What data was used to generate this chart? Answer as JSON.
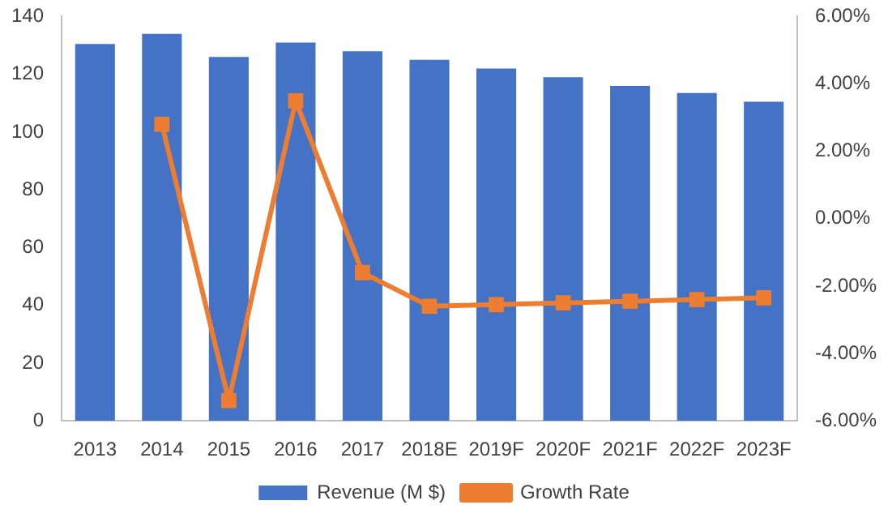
{
  "chart_data": {
    "type": "bar",
    "categories": [
      "2013",
      "2014",
      "2015",
      "2016",
      "2017",
      "2018E",
      "2019F",
      "2020F",
      "2021F",
      "2022F",
      "2023F"
    ],
    "series": [
      {
        "name": "Revenue (M $)",
        "color": "#4472c4",
        "values": [
          130.5,
          134,
          126,
          131,
          128,
          125,
          122,
          119,
          116,
          113.5,
          110.5
        ]
      },
      {
        "name": "Growth Rate",
        "type": "line",
        "axis": "y2",
        "color": "#ed7d31",
        "values": [
          null,
          2.8,
          -5.4,
          3.5,
          -1.6,
          -2.6,
          -2.55,
          -2.5,
          -2.45,
          -2.4,
          -2.35
        ]
      }
    ],
    "ylim": [
      0,
      140
    ],
    "yticks": [
      0,
      20,
      40,
      60,
      80,
      100,
      120,
      140
    ],
    "y2lim": [
      -6,
      6
    ],
    "y2ticks": [
      {
        "value": -6,
        "label": "-6.00%"
      },
      {
        "value": -4,
        "label": "-4.00%"
      },
      {
        "value": -2,
        "label": "-2.00%"
      },
      {
        "value": 0,
        "label": "0.00%"
      },
      {
        "value": 2,
        "label": "2.00%"
      },
      {
        "value": 4,
        "label": "4.00%"
      },
      {
        "value": 6,
        "label": "6.00%"
      }
    ],
    "legend": "bottom",
    "marker": "square",
    "line_style": "solid",
    "grid": false
  }
}
